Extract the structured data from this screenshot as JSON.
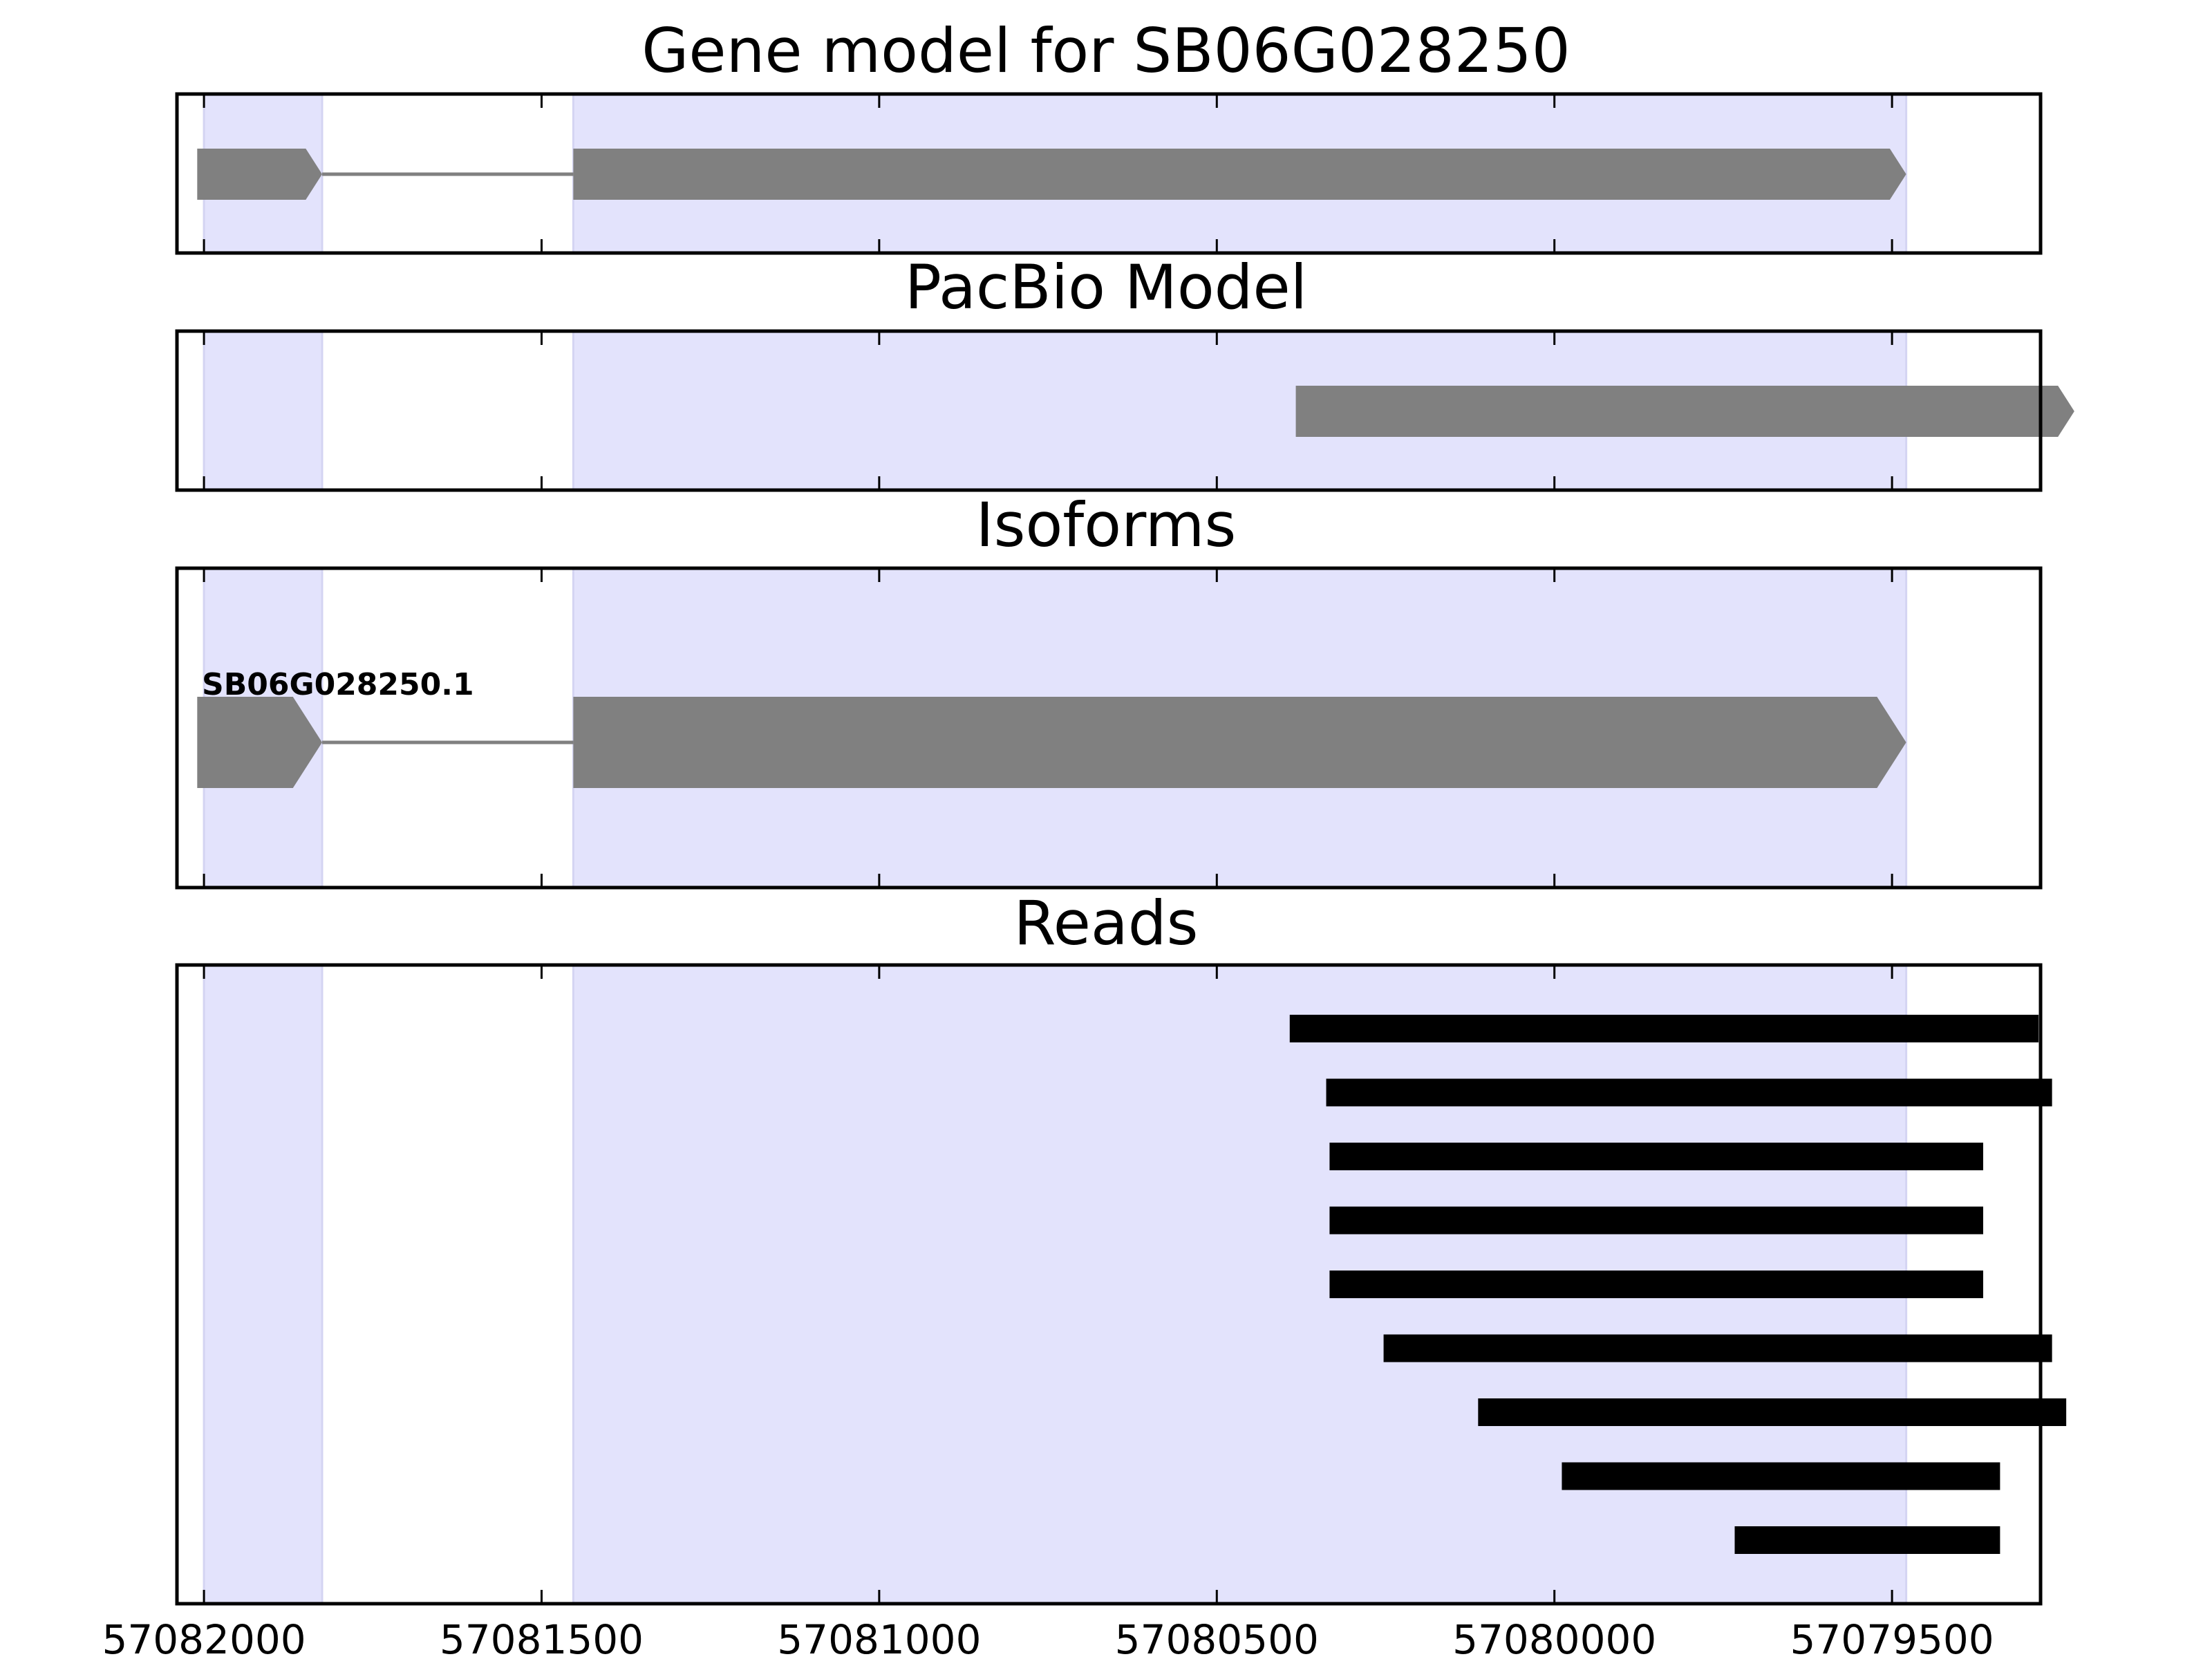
{
  "chart_data": {
    "type": "gene_track",
    "xlim": [
      57082040,
      57079280
    ],
    "x_reversed": true,
    "x_ticks": [
      57082000,
      57081500,
      57081000,
      57080500,
      57080000,
      57079500
    ],
    "x_tick_labels": [
      "57082000",
      "57081500",
      "57081000",
      "57080500",
      "57080000",
      "57079500"
    ],
    "grid": false,
    "colors": {
      "exon": "#808080",
      "intron": "#808080",
      "read": "#000000",
      "exon_shade": "#e3e3fc",
      "axes": "#000000"
    },
    "shaded_exon_regions": [
      [
        57082000,
        57081825
      ],
      [
        57081453,
        57079479
      ]
    ],
    "panels": [
      {
        "title": "Gene model for SB06G028250",
        "strand": "-",
        "features": [
          {
            "type": "exon",
            "start": 57082010,
            "end": 57081825
          },
          {
            "type": "intron",
            "start": 57081825,
            "end": 57081453
          },
          {
            "type": "exon",
            "start": 57081453,
            "end": 57079479
          }
        ]
      },
      {
        "title": "PacBio Model",
        "strand": "-",
        "features": [
          {
            "type": "exon",
            "start": 57080383,
            "end": 57079230
          }
        ]
      },
      {
        "title": "Isoforms",
        "isoforms": [
          {
            "name": "SB06G028250.1",
            "strand": "-",
            "features": [
              {
                "type": "exon",
                "start": 57082010,
                "end": 57081825
              },
              {
                "type": "intron",
                "start": 57081825,
                "end": 57081453
              },
              {
                "type": "exon",
                "start": 57081453,
                "end": 57079479
              }
            ]
          }
        ]
      },
      {
        "title": "Reads",
        "reads": [
          [
            57080392,
            57079283
          ],
          [
            57080338,
            57079263
          ],
          [
            57080333,
            57079365
          ],
          [
            57080333,
            57079365
          ],
          [
            57080333,
            57079365
          ],
          [
            57080253,
            57079263
          ],
          [
            57080113,
            57079242
          ],
          [
            57079989,
            57079340
          ],
          [
            57079733,
            57079340
          ]
        ]
      }
    ]
  }
}
